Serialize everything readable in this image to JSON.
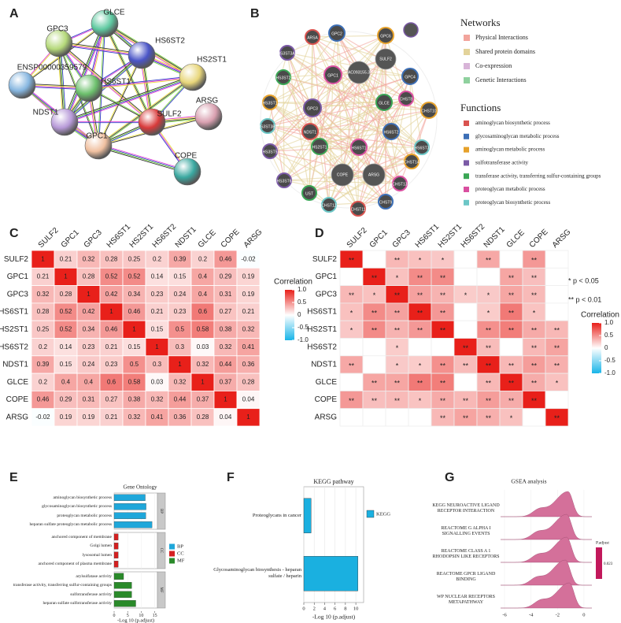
{
  "panel_labels": [
    "A",
    "B",
    "C",
    "D",
    "E",
    "F",
    "G"
  ],
  "network_a": {
    "nodes": [
      {
        "label": "GLCE",
        "color": "#5ec9a0"
      },
      {
        "label": "GPC3",
        "color": "#b5d97a"
      },
      {
        "label": "HS6ST2",
        "color": "#4a55c7"
      },
      {
        "label": "HS2ST1",
        "color": "#e8d67a"
      },
      {
        "label": "ENSP00000359579",
        "color": "#86b6e0"
      },
      {
        "label": "HS6ST1",
        "color": "#6cc06c"
      },
      {
        "label": "NDST1",
        "color": "#b79ad8"
      },
      {
        "label": "ARSG",
        "color": "#d9a0b0"
      },
      {
        "label": "SULF2",
        "color": "#d83a3a"
      },
      {
        "label": "GPC1",
        "color": "#f0c0a0"
      },
      {
        "label": "COPE",
        "color": "#3aa8a0"
      }
    ]
  },
  "network_b": {
    "nodes": [
      "ARSA",
      "GPC2",
      "GPC6",
      "HS3ST3A1",
      "HS3ST2",
      "GPC1",
      "AC093155.3",
      "SULF2",
      "GPC4",
      "HS3ST1",
      "GPC3",
      "GLCE",
      "CHST8",
      "HS3ST3B1",
      "NDST1",
      "HS6ST2",
      "CHST10",
      "HS3ST5",
      "HS2ST1",
      "HS6ST1",
      "HS6ST3",
      "COPE",
      "ARSG",
      "CHST14",
      "HS3ST6",
      "UST",
      "CHST13",
      "CHST12",
      "CHST11",
      "CHST9"
    ],
    "legend": {
      "networks_title": "Networks",
      "networks": [
        {
          "name": "Physical Interactions",
          "color": "#f2a49c"
        },
        {
          "name": "Shared protein domains",
          "color": "#e3d39a"
        },
        {
          "name": "Co-expression",
          "color": "#d8b4d8"
        },
        {
          "name": "Genetic Interactions",
          "color": "#8fd19e"
        }
      ],
      "functions_title": "Functions",
      "functions": [
        {
          "name": "aminoglycan biosynthetic process",
          "color": "#d9534f"
        },
        {
          "name": "glycosaminoglycan metabolic process",
          "color": "#3d6fb6"
        },
        {
          "name": "aminoglycan metabolic process",
          "color": "#e6a12a"
        },
        {
          "name": "sulfotransferase activity",
          "color": "#7b5aa6"
        },
        {
          "name": "transferase activity, transferring sulfur-containing groups",
          "color": "#3aa655"
        },
        {
          "name": "proteoglycan metabolic process",
          "color": "#d94fa0"
        },
        {
          "name": "proteoglycan biosynthetic process",
          "color": "#6cc6c6"
        }
      ]
    }
  },
  "chart_data": [
    {
      "type": "heatmap",
      "variables": [
        "SULF2",
        "GPC1",
        "GPC3",
        "HS6ST1",
        "HS2ST1",
        "HS6ST2",
        "NDST1",
        "GLCE",
        "COPE",
        "ARSG"
      ],
      "values": [
        [
          1,
          0.21,
          0.32,
          0.28,
          0.25,
          0.2,
          0.39,
          0.2,
          0.46,
          -0.02
        ],
        [
          0.21,
          1,
          0.28,
          0.52,
          0.52,
          0.14,
          0.15,
          0.4,
          0.29,
          0.19
        ],
        [
          0.32,
          0.28,
          1,
          0.42,
          0.34,
          0.23,
          0.24,
          0.4,
          0.31,
          0.19
        ],
        [
          0.28,
          0.52,
          0.42,
          1,
          0.46,
          0.21,
          0.23,
          0.6,
          0.27,
          0.21
        ],
        [
          0.25,
          0.52,
          0.34,
          0.46,
          1,
          0.15,
          0.5,
          0.58,
          0.38,
          0.32
        ],
        [
          0.2,
          0.14,
          0.23,
          0.21,
          0.15,
          1,
          0.3,
          0.03,
          0.32,
          0.41
        ],
        [
          0.39,
          0.15,
          0.24,
          0.23,
          0.5,
          0.3,
          1,
          0.32,
          0.44,
          0.36
        ],
        [
          0.2,
          0.4,
          0.4,
          0.6,
          0.58,
          0.03,
          0.32,
          1,
          0.37,
          0.28
        ],
        [
          0.46,
          0.29,
          0.31,
          0.27,
          0.38,
          0.32,
          0.44,
          0.37,
          1,
          0.04
        ],
        [
          -0.02,
          0.19,
          0.19,
          0.21,
          0.32,
          0.41,
          0.36,
          0.28,
          0.04,
          1
        ]
      ],
      "colorbar": {
        "title": "Correlation",
        "lim": [
          -1,
          1
        ],
        "ticks": [
          {
            "value": 1,
            "label": "1.0"
          },
          0.5,
          0,
          -0.5,
          {
            "value": -1,
            "label": "-1.0"
          }
        ],
        "colors": [
          "#18b4e8",
          "#ffffff",
          "#e8201a"
        ]
      }
    },
    {
      "type": "heatmap",
      "variables": [
        "SULF2",
        "GPC1",
        "GPC3",
        "HS6ST1",
        "HS2ST1",
        "HS6ST2",
        "NDST1",
        "GLCE",
        "COPE",
        "ARSG"
      ],
      "values": [
        [
          1,
          0.21,
          0.32,
          0.28,
          0.25,
          0.2,
          0.39,
          0.2,
          0.46,
          -0.02
        ],
        [
          0.21,
          1,
          0.28,
          0.52,
          0.52,
          0.14,
          0.15,
          0.4,
          0.29,
          0.19
        ],
        [
          0.32,
          0.28,
          1,
          0.42,
          0.34,
          0.23,
          0.24,
          0.4,
          0.31,
          0.19
        ],
        [
          0.28,
          0.52,
          0.42,
          1,
          0.46,
          0.21,
          0.23,
          0.6,
          0.27,
          0.21
        ],
        [
          0.25,
          0.52,
          0.34,
          0.46,
          1,
          0.15,
          0.5,
          0.58,
          0.38,
          0.32
        ],
        [
          0.2,
          0.14,
          0.23,
          0.21,
          0.15,
          1,
          0.3,
          0.03,
          0.32,
          0.41
        ],
        [
          0.39,
          0.15,
          0.24,
          0.23,
          0.5,
          0.3,
          1,
          0.32,
          0.44,
          0.36
        ],
        [
          0.2,
          0.4,
          0.4,
          0.6,
          0.58,
          0.03,
          0.32,
          1,
          0.37,
          0.28
        ],
        [
          0.46,
          0.29,
          0.31,
          0.27,
          0.38,
          0.32,
          0.44,
          0.37,
          1,
          0.04
        ],
        [
          -0.02,
          0.19,
          0.19,
          0.21,
          0.32,
          0.41,
          0.36,
          0.28,
          0.04,
          1
        ]
      ],
      "significance": [
        [
          "**",
          null,
          "**",
          "*",
          "*",
          null,
          "**",
          null,
          "**",
          null
        ],
        [
          null,
          "**",
          "*",
          "**",
          "**",
          null,
          null,
          "**",
          "**",
          null
        ],
        [
          "**",
          "*",
          "**",
          "**",
          "**",
          "*",
          "*",
          "**",
          "**",
          null
        ],
        [
          "*",
          "**",
          "**",
          "**",
          "**",
          null,
          "*",
          "**",
          "*",
          null
        ],
        [
          "*",
          "**",
          "**",
          "**",
          "**",
          null,
          "**",
          "**",
          "**",
          "**"
        ],
        [
          null,
          null,
          "*",
          null,
          null,
          "**",
          "**",
          null,
          "**",
          "**"
        ],
        [
          "**",
          null,
          "*",
          "*",
          "**",
          "**",
          "**",
          "**",
          "**",
          "**"
        ],
        [
          null,
          "**",
          "**",
          "**",
          "**",
          null,
          "**",
          "**",
          "**",
          "*"
        ],
        [
          "**",
          "**",
          "**",
          "*",
          "**",
          "**",
          "**",
          "**",
          "**",
          null
        ],
        [
          null,
          null,
          null,
          null,
          "**",
          "**",
          "**",
          "*",
          null,
          "**"
        ]
      ],
      "annotations": [
        "* p < 0.05",
        "** p < 0.01"
      ],
      "colorbar": {
        "title": "Correlation",
        "lim": [
          -1,
          1
        ],
        "ticks": [
          {
            "value": 1,
            "label": "1.0"
          },
          0.5,
          0,
          -0.5,
          {
            "value": -1,
            "label": "-1.0"
          }
        ],
        "colors": [
          "#18b4e8",
          "#ffffff",
          "#e8201a"
        ]
      }
    },
    {
      "type": "bar",
      "orientation": "horizontal",
      "title": "Gene Ontology",
      "series": [
        {
          "name": "BP",
          "color": "#1fa7da",
          "categories": [
            "aminoglycan biosynthetic process",
            "glycosaminoglycan biosynthetic process",
            "proteoglycan metabolic process",
            "heparan sulfate proteoglycan metabolic process"
          ],
          "values": [
            11.5,
            11.8,
            11.7,
            14
          ]
        },
        {
          "name": "CC",
          "color": "#d42020",
          "categories": [
            "anchored component of membrane",
            "Golgi lumen",
            "lysosomal lumen",
            "anchored component of plasma membrane"
          ],
          "values": [
            1.5,
            1.5,
            1.5,
            1.5
          ]
        },
        {
          "name": "MF",
          "color": "#2a8a2a",
          "categories": [
            "arylsulfatase activity",
            "transferase activity, transferring sulfur-containing groups",
            "sulfotransferase activity",
            "heparan sulfate sulfotransferase activity"
          ],
          "values": [
            3.5,
            6.5,
            6.5,
            8
          ]
        }
      ],
      "xlim": [
        0,
        16
      ],
      "xticks": [
        0,
        5,
        10,
        15
      ],
      "xlabel": "-Log 10 (p.adjust)"
    },
    {
      "type": "bar",
      "orientation": "horizontal",
      "title": "KEGG pathway",
      "series": [
        {
          "name": "KEGG",
          "color": "#1ab0e0",
          "categories": [
            "Proteoglycans in cancer",
            "Glycosaminoglycan biosynthesis - heparan sulfate / heparin"
          ],
          "values": [
            1.4,
            10.4
          ]
        }
      ],
      "xlim": [
        0,
        11.5
      ],
      "xticks": [
        0,
        2,
        4,
        6,
        8,
        10
      ],
      "xlabel": "-Log 10 (p.adjust)"
    },
    {
      "type": "ridge",
      "title": "GSEA analysis",
      "categories": [
        "KEGG NEUROACTIVE LIGAND RECEPTOR INTERACTION",
        "REACTOME G ALPHA I SIGNALLING EVENTS",
        "REACTOME CLASS A 1 RHODOPSIN LIKE RECEPTORS",
        "REACTOME GPCR LIGAND BINDING",
        "WP NUCLEAR RECEPTORS METAPATHWAY"
      ],
      "values": [
        -1.2,
        -1.3,
        -1.3,
        -1.4,
        -1.1
      ],
      "color": "#d4709a",
      "xlim": [
        -6.3,
        0.6
      ],
      "xticks": [
        -6,
        -4,
        -2,
        0
      ],
      "legend": {
        "title": "P.adjust",
        "labels": [
          0.023
        ],
        "color": "#c2185b"
      }
    }
  ]
}
